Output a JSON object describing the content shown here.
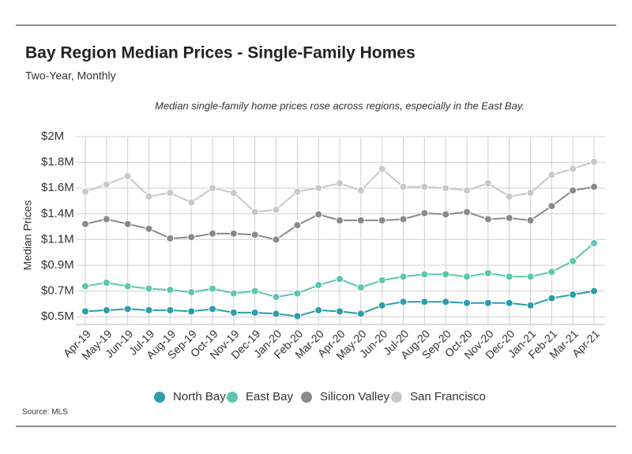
{
  "chart_data": {
    "type": "line",
    "title": "Bay Region Median Prices - Single-Family Homes",
    "subtitle": "Two-Year, Monthly",
    "annotation": "Median single-family home prices rose across regions, especially in the East Bay.",
    "y_label": "Median Prices",
    "source": "Source:  MLS",
    "categories": [
      "Apr-19",
      "May-19",
      "Jun-19",
      "Jul-19",
      "Aug-19",
      "Sep-19",
      "Oct-19",
      "Nov-19",
      "Dec-19",
      "Jan-20",
      "Feb-20",
      "Mar-20",
      "Apr-20",
      "May-20",
      "Jun-20",
      "Jul-20",
      "Aug-20",
      "Sep-20",
      "Oct-20",
      "Nov-20",
      "Dec-20",
      "Jan-21",
      "Feb-21",
      "Mar-21",
      "Apr-21"
    ],
    "series": [
      {
        "name": "North Bay",
        "color": "#2b9ea9",
        "values": [
          0.54,
          0.55,
          0.56,
          0.55,
          0.55,
          0.54,
          0.56,
          0.53,
          0.53,
          0.52,
          0.5,
          0.55,
          0.54,
          0.52,
          0.59,
          0.62,
          0.62,
          0.62,
          0.61,
          0.61,
          0.61,
          0.59,
          0.65,
          0.68,
          0.71
        ]
      },
      {
        "name": "East Bay",
        "color": "#5cc6b1",
        "values": [
          0.75,
          0.78,
          0.75,
          0.73,
          0.72,
          0.7,
          0.73,
          0.69,
          0.71,
          0.66,
          0.69,
          0.76,
          0.81,
          0.74,
          0.8,
          0.83,
          0.85,
          0.85,
          0.83,
          0.86,
          0.83,
          0.83,
          0.87,
          0.96,
          1.11
        ]
      },
      {
        "name": "Silicon Valley",
        "color": "#8a8a8a",
        "values": [
          1.27,
          1.31,
          1.27,
          1.23,
          1.15,
          1.16,
          1.19,
          1.19,
          1.18,
          1.14,
          1.26,
          1.35,
          1.3,
          1.3,
          1.3,
          1.31,
          1.36,
          1.35,
          1.37,
          1.31,
          1.32,
          1.3,
          1.42,
          1.55,
          1.58
        ]
      },
      {
        "name": "San Francisco",
        "color": "#c8c8c8",
        "values": [
          1.54,
          1.6,
          1.67,
          1.5,
          1.53,
          1.45,
          1.57,
          1.53,
          1.37,
          1.39,
          1.54,
          1.57,
          1.61,
          1.55,
          1.73,
          1.58,
          1.58,
          1.57,
          1.55,
          1.61,
          1.5,
          1.53,
          1.68,
          1.73,
          1.79
        ]
      }
    ],
    "ylim": [
      0.43,
      2.0
    ],
    "yticks": [
      {
        "value": 2.0,
        "label": "$2M"
      },
      {
        "value": 1.785,
        "label": "$1.8M"
      },
      {
        "value": 1.57,
        "label": "$1.6M"
      },
      {
        "value": 1.355,
        "label": "$1.4M"
      },
      {
        "value": 1.14,
        "label": "$1.1M"
      },
      {
        "value": 0.925,
        "label": "$0.9M"
      },
      {
        "value": 0.71,
        "label": "$0.7M"
      },
      {
        "value": 0.495,
        "label": "$0.5M"
      }
    ],
    "grid": true,
    "legend": "bottom"
  }
}
